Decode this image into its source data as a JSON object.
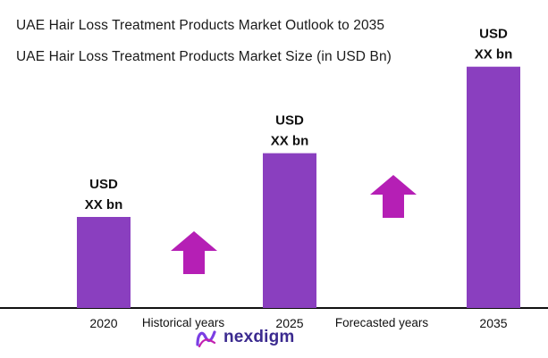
{
  "chart_data": {
    "type": "bar",
    "title": "UAE Hair Loss Treatment Products Market Outlook to 2035",
    "subtitle": "UAE Hair Loss Treatment Products Market Size (in USD Bn)",
    "categories": [
      "2020",
      "2025",
      "2035"
    ],
    "values": [
      1.0,
      1.7,
      2.65
    ],
    "bar_labels": [
      {
        "line1": "USD",
        "line2": "XX bn"
      },
      {
        "line1": "USD",
        "line2": "XX bn"
      },
      {
        "line1": "USD",
        "line2": "XX bn"
      }
    ],
    "annotations": [
      "Historical years",
      "Forecasted years"
    ],
    "bar_color": "#8a3fbf",
    "arrow_color": "#b51fb5",
    "axis_color": "#111111",
    "grid": false
  },
  "logo": {
    "text": "nexdigm"
  }
}
